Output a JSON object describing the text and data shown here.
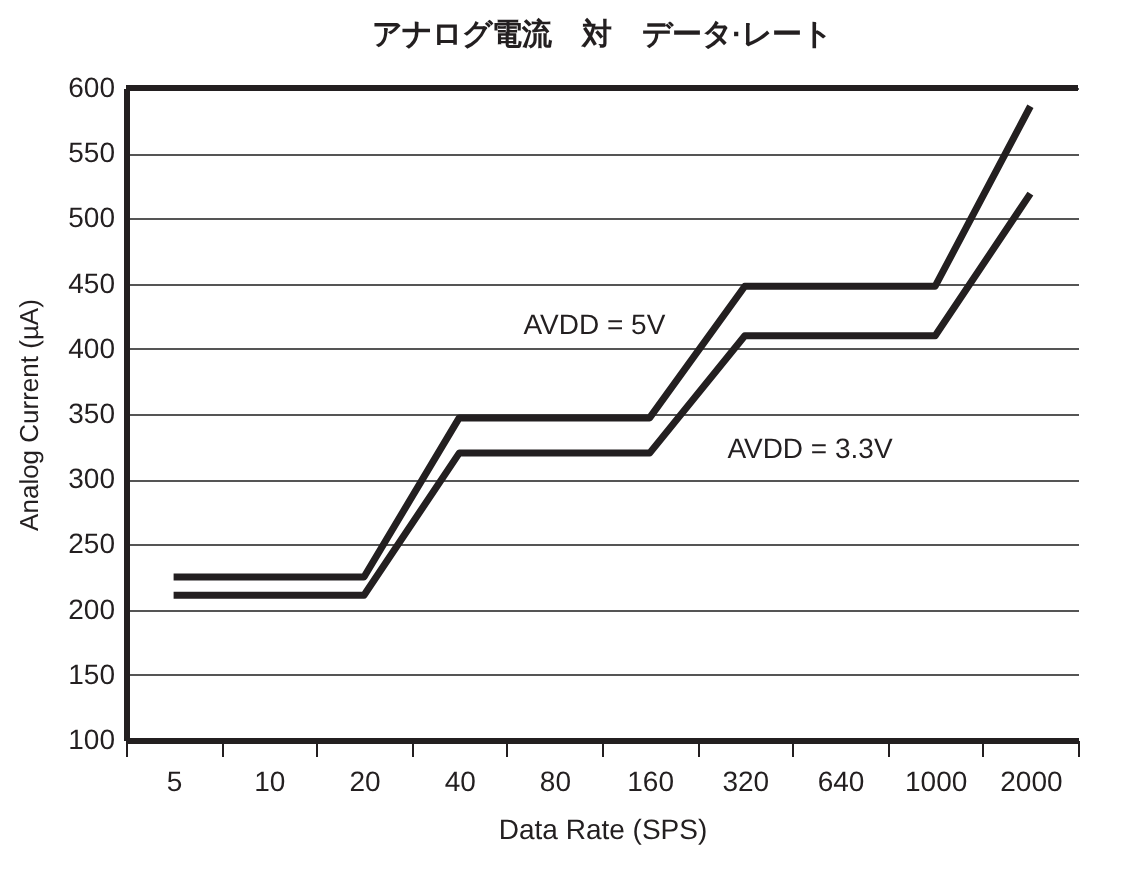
{
  "chart_data": {
    "type": "line",
    "title": "アナログ電流　対　データ·レート",
    "xlabel": "Data Rate (SPS)",
    "ylabel": "Analog Current (µA)",
    "categories": [
      "5",
      "10",
      "20",
      "40",
      "80",
      "160",
      "320",
      "640",
      "1000",
      "2000"
    ],
    "series": [
      {
        "name": "AVDD = 5V",
        "color": "#231f20",
        "values": [
          225,
          225,
          225,
          347,
          347,
          347,
          448,
          448,
          448,
          586
        ]
      },
      {
        "name": "AVDD = 3.3V",
        "color": "#231f20",
        "values": [
          211,
          211,
          211,
          320,
          320,
          320,
          410,
          410,
          410,
          519
        ]
      }
    ],
    "ylim": [
      100,
      600
    ],
    "yticks": [
      100,
      150,
      200,
      250,
      300,
      350,
      400,
      450,
      500,
      550,
      600
    ],
    "grid": "y",
    "marker": "none",
    "line_style": "solid"
  }
}
